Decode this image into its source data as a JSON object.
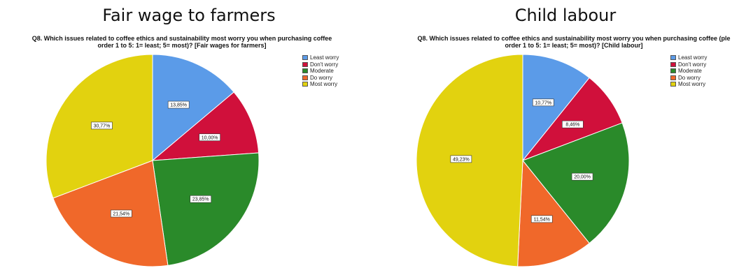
{
  "chart_data": [
    {
      "type": "pie",
      "title": "Fair wage to farmers",
      "subtitle_line1": "Q8. Which issues related to coffee ethics and sustainability most worry you when purchasing coffee",
      "subtitle_line2": "order 1 to 5: 1= least; 5= most)? [Fair wages for farmers]",
      "categories": [
        "Least worry",
        "Don't worry",
        "Moderate",
        "Do worry",
        "Most worry"
      ],
      "values": [
        13.85,
        10.0,
        23.85,
        21.54,
        30.77
      ],
      "value_labels": [
        "13,85%",
        "10,00%",
        "23,85%",
        "21,54%",
        "30,77%"
      ],
      "colors": [
        "#5b9be8",
        "#d0103b",
        "#2a8a2a",
        "#f0682a",
        "#e2d20f"
      ]
    },
    {
      "type": "pie",
      "title": "Child labour",
      "subtitle_line1": "Q8. Which issues related to coffee ethics and sustainability most worry you when purchasing coffee (ple",
      "subtitle_line2": "order 1 to 5: 1= least; 5= most)? [Child labour]",
      "categories": [
        "Least worry",
        "Don't worry",
        "Moderate",
        "Do worry",
        "Most worry"
      ],
      "values": [
        10.77,
        8.46,
        20.0,
        11.54,
        49.23
      ],
      "value_labels": [
        "10,77%",
        "8,46%",
        "20,00%",
        "11,54%",
        "49,23%"
      ],
      "colors": [
        "#5b9be8",
        "#d0103b",
        "#2a8a2a",
        "#f0682a",
        "#e2d20f"
      ]
    }
  ]
}
